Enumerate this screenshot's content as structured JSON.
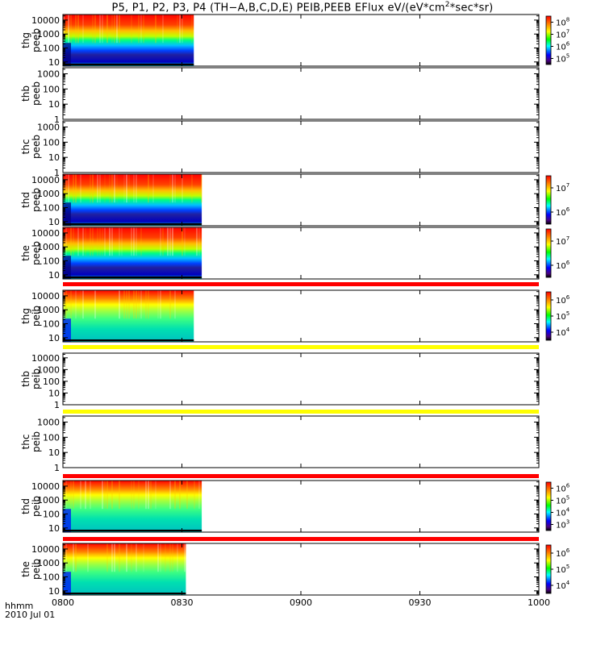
{
  "title": {
    "prefix": "P5, P1, P2, P3, P4 (TH−A,B,C,D,E) PEIB,PEEB EFlux eV/(eV*cm",
    "sup": "2",
    "suffix": "*sec*sr)"
  },
  "time_axis": {
    "label": "hhmm",
    "date": "2010 Jul 01",
    "ticks": [
      "0800",
      "0830",
      "0900",
      "0930",
      "1000"
    ]
  },
  "colors": {
    "flag_red": "#ff0000",
    "flag_yellow": "#ffff00",
    "data_gap": "#000000"
  },
  "chart_data": [
    {
      "type": "heatmap",
      "ylabel": "thg\npeeb",
      "yticks": [
        "10000",
        "1000",
        "100",
        "10"
      ],
      "yscale": "log",
      "xrange": [
        "0800",
        "1000"
      ],
      "data_end": "0833",
      "colorbar": [
        "10^8",
        "10^7",
        "10^6",
        "10^5"
      ],
      "colorscale": "rainbow"
    },
    {
      "type": "heatmap",
      "ylabel": "thb\npeeb",
      "yticks": [
        "1000",
        "100",
        "10",
        "1"
      ],
      "yscale": "log",
      "xrange": [
        "0800",
        "1000"
      ],
      "data_end": null,
      "colorbar": []
    },
    {
      "type": "heatmap",
      "ylabel": "thc\npeeb",
      "yticks": [
        "1000",
        "100",
        "10",
        "1"
      ],
      "yscale": "log",
      "xrange": [
        "0800",
        "1000"
      ],
      "data_end": null,
      "colorbar": []
    },
    {
      "type": "heatmap",
      "ylabel": "thd\npeeb",
      "yticks": [
        "10000",
        "1000",
        "100",
        "10"
      ],
      "yscale": "log",
      "xrange": [
        "0800",
        "1000"
      ],
      "data_end": "0835",
      "colorbar": [
        "10^7",
        "10^6"
      ],
      "colorscale": "rainbow"
    },
    {
      "type": "heatmap",
      "ylabel": "the\npeeb",
      "yticks": [
        "10000",
        "1000",
        "100",
        "10"
      ],
      "yscale": "log",
      "xrange": [
        "0800",
        "1000"
      ],
      "data_end": "0835",
      "colorbar": [
        "10^7",
        "10^6"
      ],
      "colorscale": "rainbow",
      "flag_bar": "red"
    },
    {
      "type": "heatmap",
      "ylabel": "thg\npeib",
      "yticks": [
        "10000",
        "1000",
        "100",
        "10"
      ],
      "yscale": "log",
      "xrange": [
        "0800",
        "1000"
      ],
      "data_end": "0833",
      "colorbar": [
        "10^6",
        "10^5",
        "10^4"
      ],
      "colorscale": "rainbow",
      "flag_bar": "yellow"
    },
    {
      "type": "heatmap",
      "ylabel": "thb\npeib",
      "yticks": [
        "10000",
        "1000",
        "100",
        "10",
        "1"
      ],
      "yscale": "log",
      "xrange": [
        "0800",
        "1000"
      ],
      "data_end": null,
      "colorbar": [],
      "flag_bar": "yellow"
    },
    {
      "type": "heatmap",
      "ylabel": "thc\npeib",
      "yticks": [
        "1000",
        "100",
        "10",
        "1"
      ],
      "yscale": "log",
      "xrange": [
        "0800",
        "1000"
      ],
      "data_end": null,
      "colorbar": [],
      "flag_bar": "red"
    },
    {
      "type": "heatmap",
      "ylabel": "thd\npeib",
      "yticks": [
        "10000",
        "1000",
        "100",
        "10"
      ],
      "yscale": "log",
      "xrange": [
        "0800",
        "1000"
      ],
      "data_end": "0835",
      "colorbar": [
        "10^6",
        "10^5",
        "10^4",
        "10^3"
      ],
      "colorscale": "rainbow",
      "flag_bar": "red"
    },
    {
      "type": "heatmap",
      "ylabel": "the\npeib",
      "yticks": [
        "10000",
        "1000",
        "100",
        "10"
      ],
      "yscale": "log",
      "xrange": [
        "0800",
        "1000"
      ],
      "data_end": "0831",
      "colorbar": [
        "10^6",
        "10^5",
        "10^4"
      ],
      "colorscale": "rainbow"
    }
  ]
}
